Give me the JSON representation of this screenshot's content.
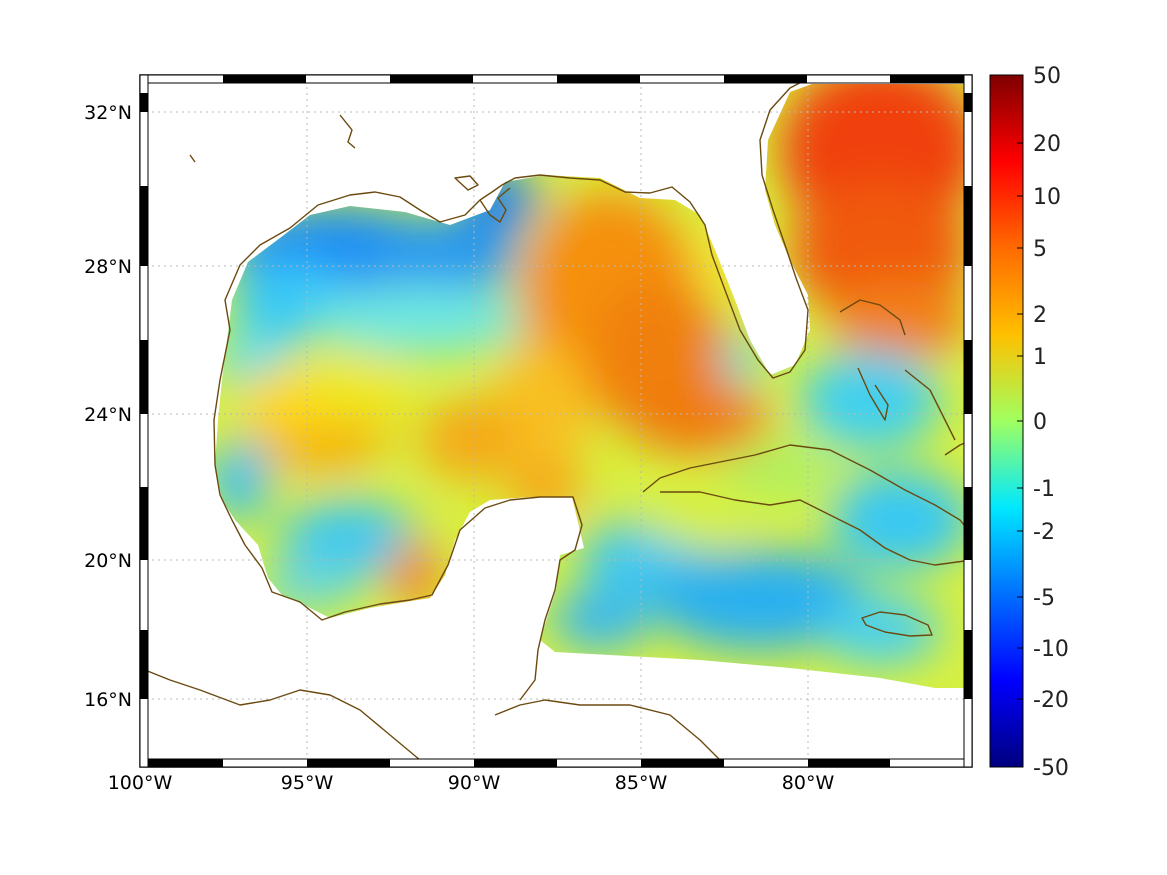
{
  "map": {
    "lon_ticks": [
      {
        "label": "100°W",
        "value": -100
      },
      {
        "label": "95°W",
        "value": -95
      },
      {
        "label": "90°W",
        "value": -90
      },
      {
        "label": "85°W",
        "value": -85
      },
      {
        "label": "80°W",
        "value": -80
      }
    ],
    "lat_ticks": [
      {
        "label": "32°N",
        "value": 32
      },
      {
        "label": "28°N",
        "value": 28
      },
      {
        "label": "24°N",
        "value": 24
      },
      {
        "label": "20°N",
        "value": 20
      },
      {
        "label": "16°N",
        "value": 16
      }
    ],
    "lon_range": [
      -100,
      -75
    ],
    "lat_range": [
      14.3,
      33
    ],
    "grid": true,
    "coastline_color": "#6b4a10"
  },
  "colorbar": {
    "labels": [
      "50",
      "20",
      "10",
      "5",
      "2",
      "1",
      "0",
      "-1",
      "-2",
      "-5",
      "-10",
      "-20",
      "-50"
    ],
    "colormap": "jet",
    "placement": "right"
  }
}
